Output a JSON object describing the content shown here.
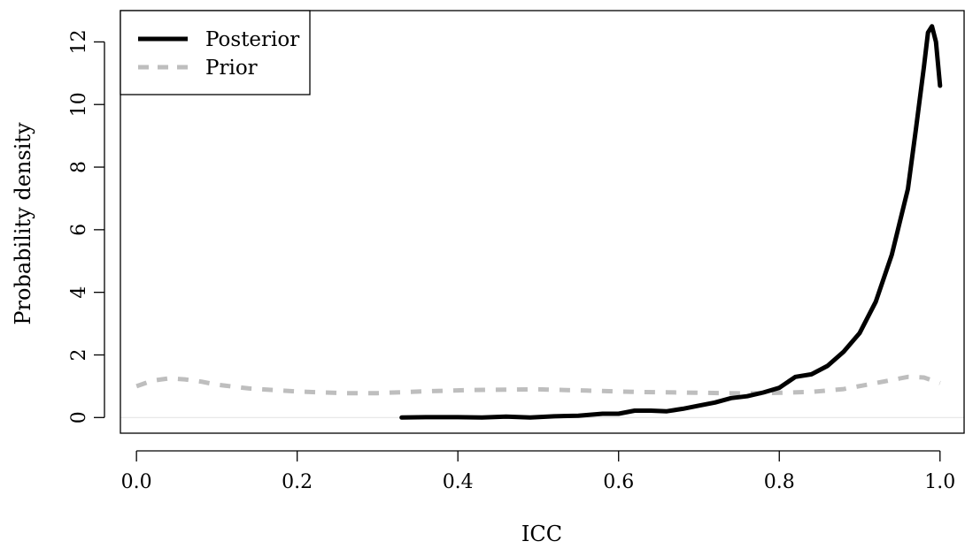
{
  "chart_data": {
    "type": "line",
    "title": "",
    "xlabel": "ICC",
    "ylabel": "Probability density",
    "xlim": [
      -0.02,
      1.03
    ],
    "ylim": [
      -0.5,
      13.0
    ],
    "xticks": [
      0.0,
      0.2,
      0.4,
      0.6,
      0.8,
      1.0
    ],
    "xtick_labels": [
      "0.0",
      "0.2",
      "0.4",
      "0.6",
      "0.8",
      "1.0"
    ],
    "yticks": [
      0,
      2,
      4,
      6,
      8,
      10,
      12
    ],
    "ytick_labels": [
      "0",
      "2",
      "4",
      "6",
      "8",
      "10",
      "12"
    ],
    "grid": false,
    "reference_line_y": 0,
    "legend": {
      "position": "top-left",
      "entries": [
        "Posterior",
        "Prior"
      ]
    },
    "series": [
      {
        "name": "Posterior",
        "color": "#000000",
        "dash": "solid",
        "x": [
          0.33,
          0.36,
          0.4,
          0.43,
          0.46,
          0.49,
          0.52,
          0.55,
          0.58,
          0.6,
          0.62,
          0.64,
          0.66,
          0.68,
          0.7,
          0.72,
          0.74,
          0.76,
          0.78,
          0.8,
          0.82,
          0.84,
          0.86,
          0.88,
          0.9,
          0.92,
          0.94,
          0.96,
          0.97,
          0.98,
          0.985,
          0.99,
          0.995,
          1.0
        ],
        "y": [
          0.0,
          0.01,
          0.01,
          0.0,
          0.03,
          0.0,
          0.04,
          0.06,
          0.12,
          0.12,
          0.22,
          0.22,
          0.2,
          0.28,
          0.38,
          0.48,
          0.62,
          0.68,
          0.8,
          0.95,
          1.3,
          1.38,
          1.65,
          2.1,
          2.7,
          3.7,
          5.2,
          7.3,
          9.2,
          11.2,
          12.3,
          12.5,
          12.0,
          10.6
        ]
      },
      {
        "name": "Prior",
        "color": "#bebebe",
        "dash": "dashed",
        "x": [
          0.0,
          0.02,
          0.04,
          0.06,
          0.08,
          0.1,
          0.14,
          0.2,
          0.26,
          0.3,
          0.36,
          0.42,
          0.5,
          0.56,
          0.62,
          0.7,
          0.76,
          0.8,
          0.84,
          0.88,
          0.92,
          0.96,
          0.98,
          1.0
        ],
        "y": [
          1.0,
          1.18,
          1.25,
          1.22,
          1.15,
          1.05,
          0.93,
          0.83,
          0.78,
          0.78,
          0.84,
          0.88,
          0.9,
          0.86,
          0.82,
          0.79,
          0.77,
          0.79,
          0.82,
          0.91,
          1.1,
          1.3,
          1.28,
          1.1
        ]
      }
    ]
  }
}
